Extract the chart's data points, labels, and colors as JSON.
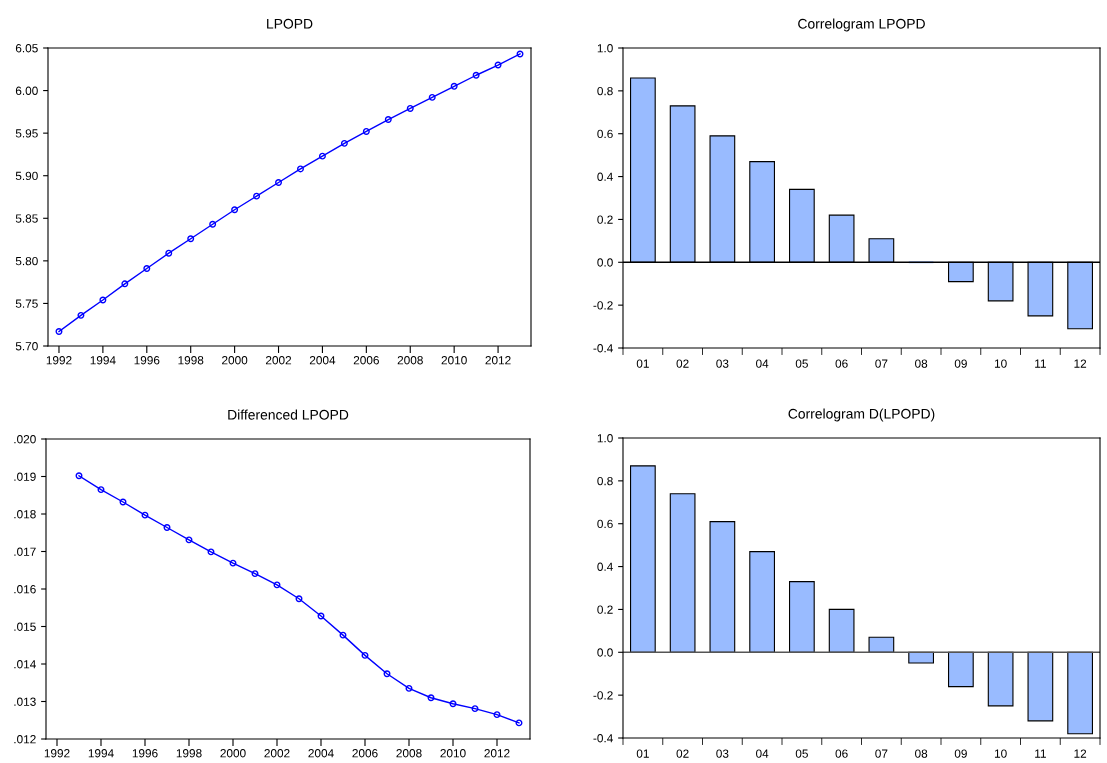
{
  "chart_data": [
    {
      "type": "line",
      "title": "LPOPD",
      "x": [
        1992,
        1993,
        1994,
        1995,
        1996,
        1997,
        1998,
        1999,
        2000,
        2001,
        2002,
        2003,
        2004,
        2005,
        2006,
        2007,
        2008,
        2009,
        2010,
        2011,
        2012,
        2013
      ],
      "series": [
        {
          "color": "#0000ff",
          "values": [
            5.717,
            5.736,
            5.754,
            5.773,
            5.791,
            5.809,
            5.826,
            5.843,
            5.86,
            5.876,
            5.892,
            5.908,
            5.923,
            5.938,
            5.952,
            5.966,
            5.979,
            5.992,
            6.005,
            6.018,
            6.03,
            6.043
          ]
        }
      ],
      "xlim": [
        1991.5,
        2013.5
      ],
      "xticks": [
        1992,
        1994,
        1996,
        1998,
        2000,
        2002,
        2004,
        2006,
        2008,
        2010,
        2012
      ],
      "ylim": [
        5.7,
        6.05
      ],
      "yticks": [
        {
          "value": 5.7,
          "label": "5.70"
        },
        {
          "value": 5.75,
          "label": "5.75"
        },
        {
          "value": 5.8,
          "label": "5.80"
        },
        {
          "value": 5.85,
          "label": "5.85"
        },
        {
          "value": 5.9,
          "label": "5.90"
        },
        {
          "value": 5.95,
          "label": "5.95"
        },
        {
          "value": 6.0,
          "label": "6.00"
        },
        {
          "value": 6.05,
          "label": "6.05"
        }
      ],
      "marker": "circle",
      "line_style": "solid",
      "grid": false,
      "legend": false
    },
    {
      "type": "bar",
      "title": "Correlogram LPOPD",
      "categories": [
        "01",
        "02",
        "03",
        "04",
        "05",
        "06",
        "07",
        "08",
        "09",
        "10",
        "11",
        "12"
      ],
      "series": [
        {
          "color": "#99bbff",
          "values": [
            0.86,
            0.73,
            0.59,
            0.47,
            0.34,
            0.22,
            0.11,
            0.0,
            -0.09,
            -0.18,
            -0.25,
            -0.31
          ]
        }
      ],
      "ylim": [
        -0.4,
        1.0
      ],
      "yticks": [
        {
          "value": -0.4,
          "label": "-0.4"
        },
        {
          "value": -0.2,
          "label": "-0.2"
        },
        {
          "value": 0.0,
          "label": "0.0"
        },
        {
          "value": 0.2,
          "label": "0.2"
        },
        {
          "value": 0.4,
          "label": "0.4"
        },
        {
          "value": 0.6,
          "label": "0.6"
        },
        {
          "value": 0.8,
          "label": "0.8"
        },
        {
          "value": 1.0,
          "label": "1.0"
        }
      ],
      "ref_lines": [
        {
          "axis": "y",
          "value": 0,
          "color": "#000000"
        }
      ],
      "grid": false,
      "legend": false
    },
    {
      "type": "line",
      "title": "Differenced LPOPD",
      "x": [
        1993,
        1994,
        1995,
        1996,
        1997,
        1998,
        1999,
        2000,
        2001,
        2002,
        2003,
        2004,
        2005,
        2006,
        2007,
        2008,
        2009,
        2010,
        2011,
        2012,
        2013
      ],
      "series": [
        {
          "color": "#0000ff",
          "values": [
            0.01902,
            0.01865,
            0.01832,
            0.01797,
            0.01764,
            0.01731,
            0.01699,
            0.01669,
            0.01641,
            0.01611,
            0.01574,
            0.01528,
            0.01477,
            0.01423,
            0.01374,
            0.01335,
            0.0131,
            0.01294,
            0.01281,
            0.01265,
            0.01243
          ]
        }
      ],
      "xlim": [
        1991.5,
        2013.5
      ],
      "xticks": [
        1992,
        1994,
        1996,
        1998,
        2000,
        2002,
        2004,
        2006,
        2008,
        2010,
        2012
      ],
      "ylim": [
        0.012,
        0.02
      ],
      "yticks": [
        {
          "value": 0.012,
          "label": ".012"
        },
        {
          "value": 0.013,
          "label": ".013"
        },
        {
          "value": 0.014,
          "label": ".014"
        },
        {
          "value": 0.015,
          "label": ".015"
        },
        {
          "value": 0.016,
          "label": ".016"
        },
        {
          "value": 0.017,
          "label": ".017"
        },
        {
          "value": 0.018,
          "label": ".018"
        },
        {
          "value": 0.019,
          "label": ".019"
        },
        {
          "value": 0.02,
          "label": ".020"
        }
      ],
      "marker": "circle",
      "line_style": "solid",
      "grid": false,
      "legend": false
    },
    {
      "type": "bar",
      "title": "Correlogram D(LPOPD)",
      "categories": [
        "01",
        "02",
        "03",
        "04",
        "05",
        "06",
        "07",
        "08",
        "09",
        "10",
        "11",
        "12"
      ],
      "series": [
        {
          "color": "#99bbff",
          "values": [
            0.87,
            0.74,
            0.61,
            0.47,
            0.33,
            0.2,
            0.07,
            -0.05,
            -0.16,
            -0.25,
            -0.32,
            -0.38
          ]
        }
      ],
      "ylim": [
        -0.4,
        1.0
      ],
      "yticks": [
        {
          "value": -0.4,
          "label": "-0.4"
        },
        {
          "value": -0.2,
          "label": "-0.2"
        },
        {
          "value": 0.0,
          "label": "0.0"
        },
        {
          "value": 0.2,
          "label": "0.2"
        },
        {
          "value": 0.4,
          "label": "0.4"
        },
        {
          "value": 0.6,
          "label": "0.6"
        },
        {
          "value": 0.8,
          "label": "0.8"
        },
        {
          "value": 1.0,
          "label": "1.0"
        }
      ],
      "ref_lines": [
        {
          "axis": "y",
          "value": 0,
          "color": "#555555"
        }
      ],
      "grid": false,
      "legend": false
    }
  ]
}
